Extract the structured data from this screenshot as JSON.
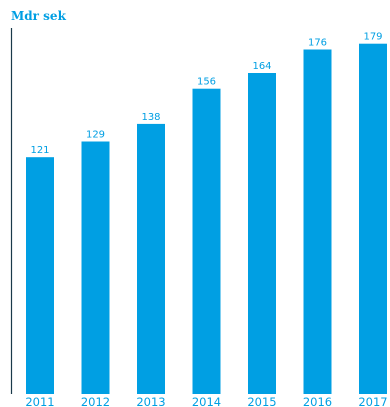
{
  "chart_data": {
    "type": "bar",
    "ylabel": "Mdr sek",
    "categories": [
      "2011",
      "2012",
      "2013",
      "2014",
      "2015",
      "2016",
      "2017"
    ],
    "values": [
      121,
      129,
      138,
      156,
      164,
      176,
      179
    ],
    "data_labels": [
      "121",
      "129",
      "138",
      "156",
      "164",
      "176",
      "179"
    ],
    "ylim": [
      0,
      187
    ],
    "grid": false,
    "legend": "none",
    "colors": {
      "bar": "#009fe3",
      "axis": "#1a3a4a",
      "text": "#009fe3"
    }
  }
}
